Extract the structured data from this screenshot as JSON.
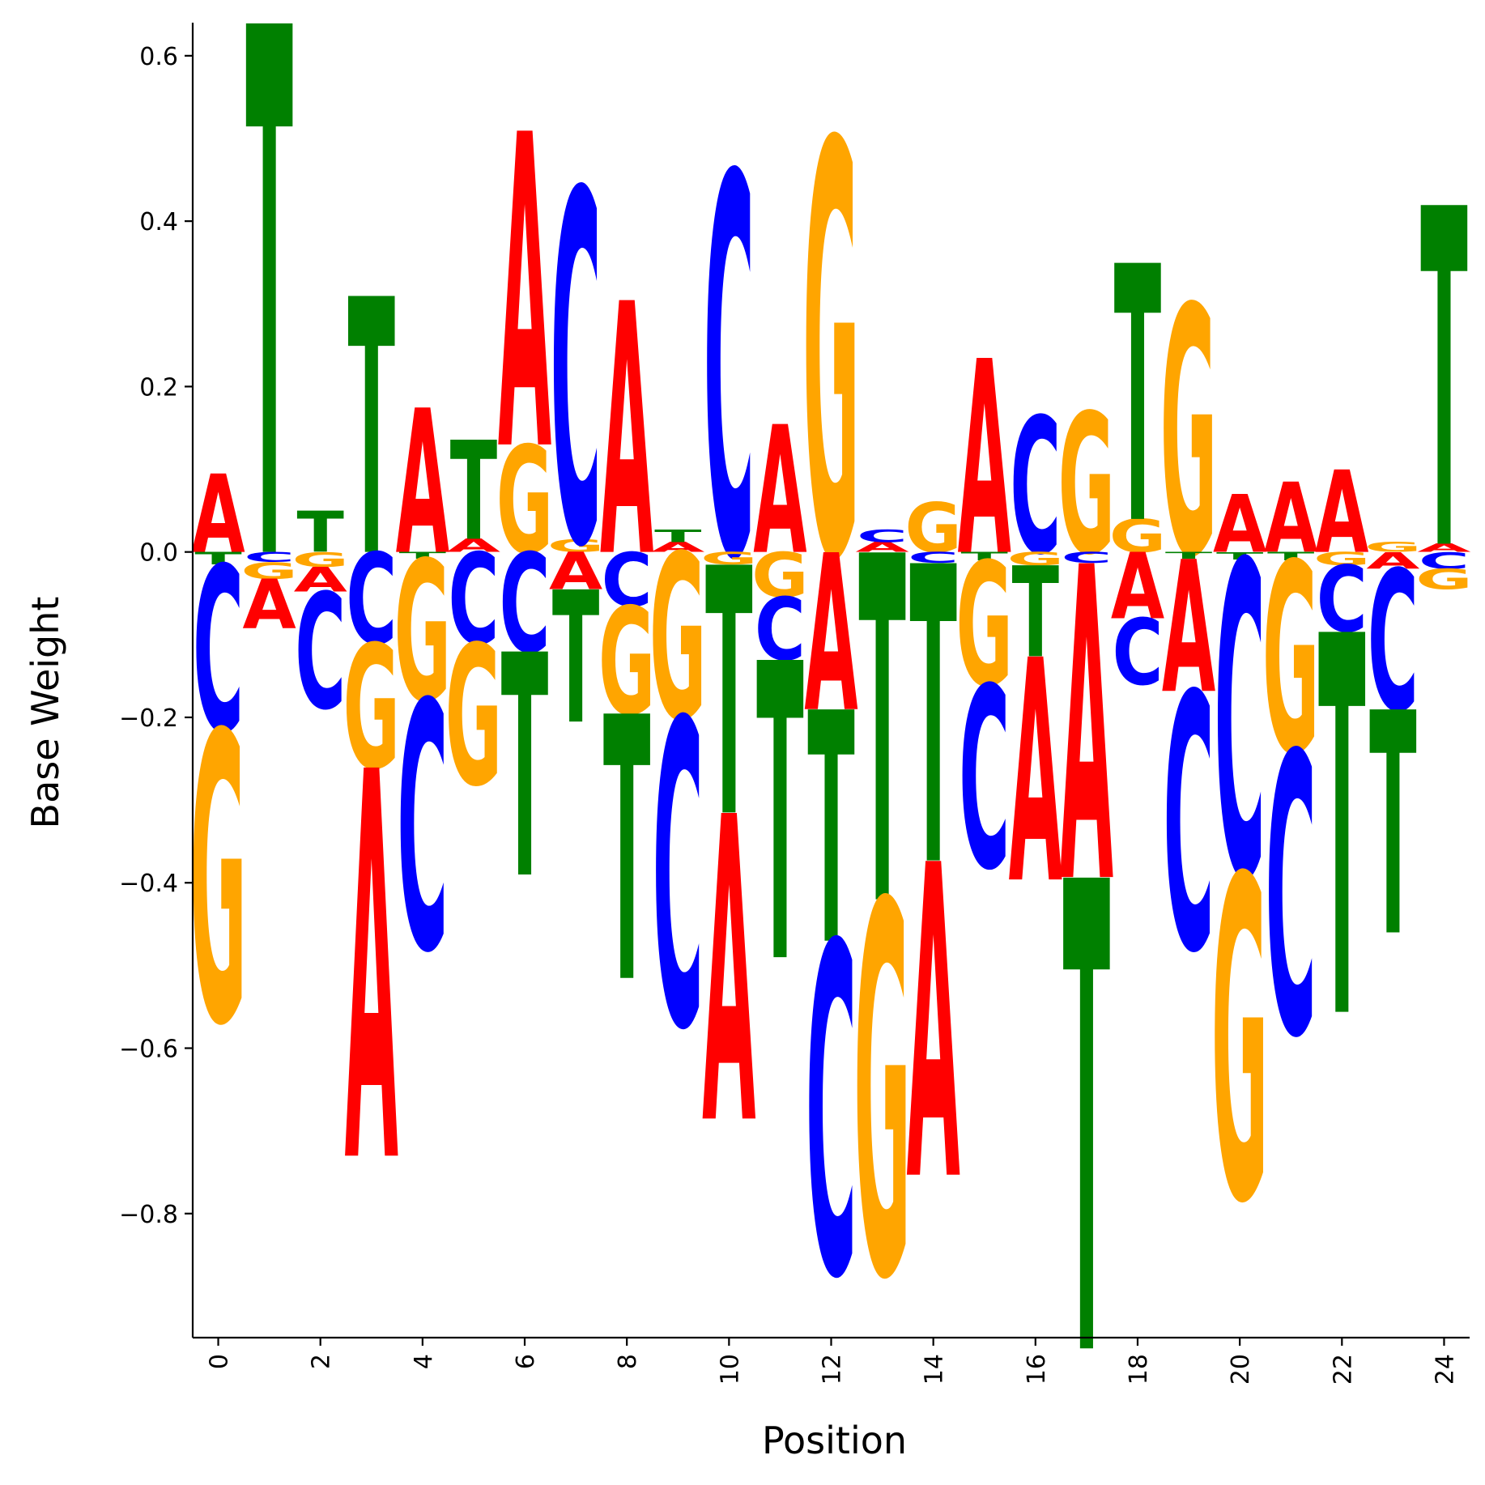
{
  "chart_data": {
    "type": "sequence-logo",
    "xlabel": "Position",
    "ylabel": "Base Weight",
    "xlim": [
      -0.5,
      24.5
    ],
    "ylim": [
      -0.95,
      0.64
    ],
    "x_ticks": [
      0,
      2,
      4,
      6,
      8,
      10,
      12,
      14,
      16,
      18,
      20,
      22,
      24
    ],
    "y_ticks": [
      0.6,
      0.4,
      0.2,
      0.0,
      -0.2,
      -0.4,
      -0.6,
      -0.8
    ],
    "y_tick_labels": [
      "0.6",
      "0.4",
      "0.2",
      "0.0",
      "−0.2",
      "−0.4",
      "−0.6",
      "−0.8"
    ],
    "colors": {
      "A": "#ff0000",
      "C": "#0000ff",
      "G": "#ffa500",
      "T": "#008000"
    },
    "positions": [
      {
        "pos": 0,
        "A": 0.095,
        "C": -0.2,
        "G": -0.35,
        "T": -0.015
      },
      {
        "pos": 1,
        "A": -0.06,
        "C": -0.012,
        "G": -0.02,
        "T": 0.64
      },
      {
        "pos": 2,
        "A": -0.03,
        "C": -0.14,
        "G": -0.018,
        "T": 0.05
      },
      {
        "pos": 3,
        "A": -0.47,
        "C": -0.11,
        "G": -0.15,
        "T": 0.31
      },
      {
        "pos": 4,
        "A": 0.175,
        "C": -0.3,
        "G": -0.17,
        "T": -0.008
      },
      {
        "pos": 5,
        "A": 0.016,
        "C": -0.11,
        "G": -0.17,
        "T": 0.12
      },
      {
        "pos": 6,
        "A": 0.38,
        "C": -0.12,
        "G": 0.13,
        "T": -0.27
      },
      {
        "pos": 7,
        "A": -0.045,
        "C": 0.425,
        "G": 0.015,
        "T": -0.16
      },
      {
        "pos": 8,
        "A": 0.305,
        "C": -0.065,
        "G": -0.13,
        "T": -0.32
      },
      {
        "pos": 9,
        "A": 0.012,
        "C": -0.37,
        "G": -0.2,
        "T": 0.015
      },
      {
        "pos": 10,
        "A": -0.37,
        "C": 0.46,
        "G": -0.015,
        "T": -0.3
      },
      {
        "pos": 11,
        "A": 0.155,
        "C": -0.076,
        "G": -0.054,
        "T": -0.36
      },
      {
        "pos": 12,
        "A": -0.19,
        "C": -0.4,
        "G": 0.5,
        "T": -0.28
      },
      {
        "pos": 13,
        "A": 0.012,
        "C": 0.015,
        "G": -0.45,
        "T": -0.42
      },
      {
        "pos": 14,
        "A": -0.38,
        "C": -0.013,
        "G": 0.06,
        "T": -0.36
      },
      {
        "pos": 15,
        "A": 0.235,
        "C": -0.22,
        "G": -0.15,
        "T": -0.01
      },
      {
        "pos": 16,
        "A": -0.27,
        "C": 0.165,
        "G": -0.016,
        "T": -0.11
      },
      {
        "pos": 17,
        "A": -0.38,
        "C": -0.013,
        "G": 0.17,
        "T": -0.57
      },
      {
        "pos": 18,
        "A": -0.08,
        "C": -0.08,
        "G": 0.04,
        "T": 0.31
      },
      {
        "pos": 19,
        "A": -0.16,
        "C": -0.31,
        "G": 0.3,
        "T": -0.008
      },
      {
        "pos": 20,
        "A": 0.07,
        "C": -0.38,
        "G": -0.39,
        "T": -0.009
      },
      {
        "pos": 21,
        "A": 0.085,
        "C": -0.34,
        "G": -0.23,
        "T": -0.01
      },
      {
        "pos": 22,
        "A": 0.1,
        "C": -0.08,
        "G": -0.016,
        "T": -0.46
      },
      {
        "pos": 23,
        "A": -0.02,
        "C": -0.17,
        "G": 0.012,
        "T": -0.27
      },
      {
        "pos": 24,
        "A": 0.01,
        "C": -0.02,
        "G": -0.025,
        "T": 0.41
      }
    ]
  }
}
